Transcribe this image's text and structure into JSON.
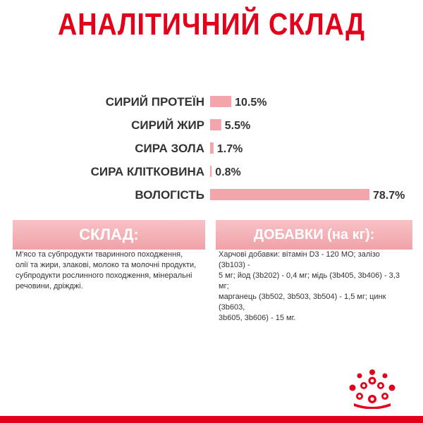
{
  "title": "АНАЛІТИЧНИЙ СКЛАД",
  "colors": {
    "brand_red": "#e2001a",
    "bar_pink": "#f2a5ab",
    "text": "#333333"
  },
  "chart_data": {
    "type": "bar",
    "orientation": "horizontal",
    "categories": [
      "СИРИЙ ПРОТЕЇН",
      "СИРИЙ ЖИР",
      "СИРА ЗОЛА",
      "СИРА КЛІТКОВИНА",
      "ВОЛОГІСТЬ"
    ],
    "values": [
      10.5,
      5.5,
      1.7,
      0.8,
      78.7
    ],
    "value_labels": [
      "10.5%",
      "5.5%",
      "1.7%",
      "0.8%",
      "78.7%"
    ],
    "xlim": [
      0,
      78.7
    ],
    "grid": false
  },
  "composition": {
    "heading": "СКЛАД:",
    "text": "М'ясо та субпродукти тваринного походження,\nолії та жири, злакові, молоко та молочні продукти,\nсубпродукти рослинного походження, мінеральні\nречовини, дріжджі."
  },
  "additives": {
    "heading": "ДОБАВКИ (на кг):",
    "text": "Харчові добавки: вітамін D3 - 120 МО; залізо (3b103) -\n5 мг; йод (3b202) - 0,4 мг; мідь (3b405, 3b406) - 3,3 мг;\nмарганець (3b502, 3b503, 3b504) - 1,5 мг; цинк (3b603,\n3b605, 3b606) - 15 мг."
  },
  "logo": {
    "icon": "royal-canin-crown-icon"
  }
}
